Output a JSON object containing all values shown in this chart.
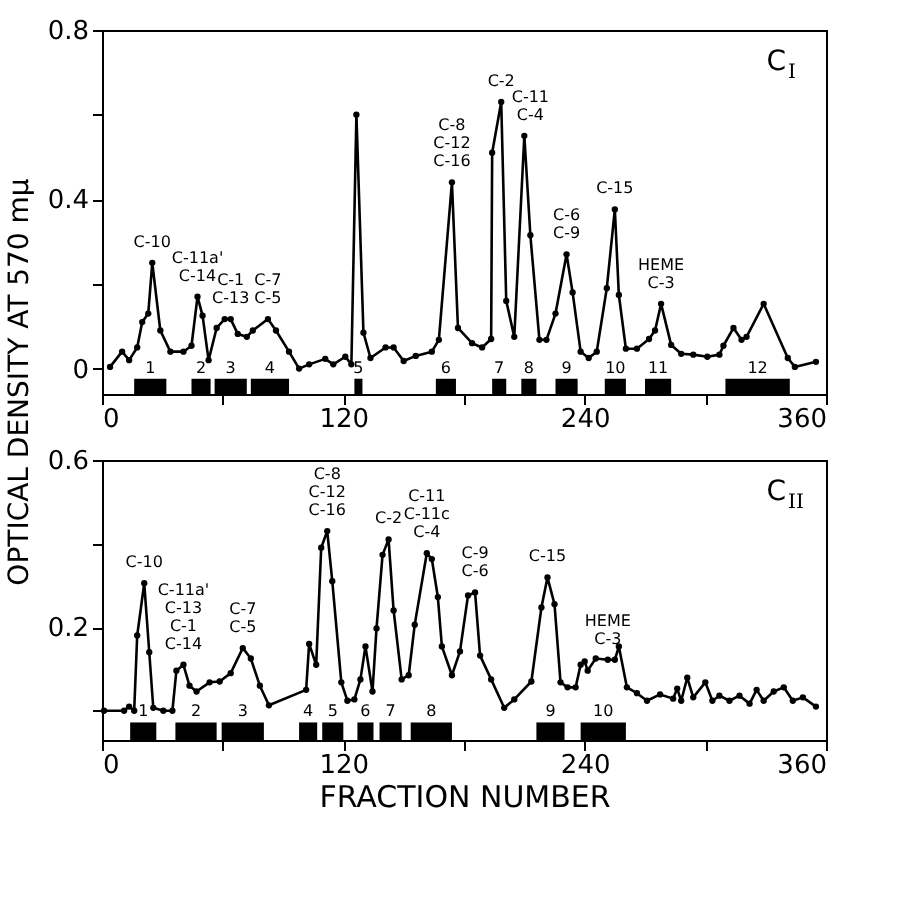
{
  "chart_data": [
    {
      "type": "line",
      "title": "C$_{I}$",
      "ylabel": "OPTICAL DENSITY AT 570 mμ",
      "marker": "circle",
      "grid": false,
      "xlim": [
        0,
        360
      ],
      "xticks": [
        0,
        {
          "value": 60,
          "label": null
        },
        120,
        {
          "value": 180,
          "label": null
        },
        240,
        {
          "value": 300,
          "label": null
        },
        360
      ],
      "ylim": [
        -0.06,
        0.8
      ],
      "yticks": [
        0,
        {
          "value": 0.2,
          "label": null
        },
        0.4,
        {
          "value": 0.6,
          "label": null
        },
        0.8
      ],
      "series": [
        {
          "color": "#000000",
          "x": [
            4,
            10,
            13.5,
            17.5,
            20,
            23,
            25,
            29,
            34,
            40.5,
            44.5,
            47.5,
            50,
            53,
            57,
            61,
            64,
            67.5,
            72,
            75,
            82.5,
            86.5,
            93,
            98,
            103,
            111,
            115,
            121,
            124,
            126.5,
            130,
            133.5,
            141,
            145,
            150,
            156,
            164,
            167.5,
            174,
            177,
            184,
            189,
            193.5,
            194,
            198.5,
            201,
            205,
            210,
            213,
            217.5,
            221,
            225.5,
            231,
            234,
            238,
            242,
            246,
            251,
            255,
            257,
            260.5,
            266,
            272,
            275,
            278,
            283,
            288,
            294,
            301,
            307,
            309,
            314,
            318,
            320.5,
            329,
            341,
            344.5,
            355
          ],
          "values": [
            0.004,
            0.04,
            0.02,
            0.05,
            0.11,
            0.13,
            0.25,
            0.09,
            0.04,
            0.04,
            0.054,
            0.17,
            0.125,
            0.02,
            0.096,
            0.117,
            0.117,
            0.082,
            0.075,
            0.09,
            0.117,
            0.09,
            0.04,
            0.0,
            0.01,
            0.023,
            0.01,
            0.028,
            0.01,
            0.6,
            0.085,
            0.025,
            0.05,
            0.05,
            0.018,
            0.03,
            0.04,
            0.068,
            0.44,
            0.096,
            0.06,
            0.05,
            0.07,
            0.51,
            0.63,
            0.16,
            0.075,
            0.55,
            0.315,
            0.068,
            0.068,
            0.13,
            0.27,
            0.18,
            0.04,
            0.025,
            0.04,
            0.19,
            0.376,
            0.174,
            0.047,
            0.047,
            0.07,
            0.09,
            0.153,
            0.056,
            0.035,
            0.033,
            0.028,
            0.033,
            0.054,
            0.096,
            0.068,
            0.075,
            0.153,
            0.025,
            0.004,
            0.016
          ]
        }
      ],
      "bands": [
        {
          "axis": "x",
          "from": 16,
          "to": 32,
          "label": "1"
        },
        {
          "axis": "x",
          "from": 44.5,
          "to": 54,
          "label": "2"
        },
        {
          "axis": "x",
          "from": 56,
          "to": 72,
          "label": "3"
        },
        {
          "axis": "x",
          "from": 74,
          "to": 93,
          "label": "4"
        },
        {
          "axis": "x",
          "from": 125.5,
          "to": 129.5,
          "label": "5"
        },
        {
          "axis": "x",
          "from": 166,
          "to": 176,
          "label": "6"
        },
        {
          "axis": "x",
          "from": 194,
          "to": 201,
          "label": "7"
        },
        {
          "axis": "x",
          "from": 208.5,
          "to": 216,
          "label": "8"
        },
        {
          "axis": "x",
          "from": 225.5,
          "to": 236.5,
          "label": "9"
        },
        {
          "axis": "x",
          "from": 250,
          "to": 260.5,
          "label": "10"
        },
        {
          "axis": "x",
          "from": 270,
          "to": 283,
          "label": "11"
        },
        {
          "axis": "x",
          "from": 310,
          "to": 342,
          "label": "12"
        }
      ],
      "annotations": [
        {
          "text": "C-10",
          "x": 25,
          "y": 0.25
        },
        {
          "text": "C-11a'\nC-14",
          "x": 47.5,
          "y": 0.17
        },
        {
          "text": "C-1\nC-13",
          "x": 64,
          "y": 0.117
        },
        {
          "text": "C-7\nC-5",
          "x": 82.5,
          "y": 0.117
        },
        {
          "text": "C-8\nC-12\nC-16",
          "x": 174,
          "y": 0.44
        },
        {
          "text": "C-2",
          "x": 198.5,
          "y": 0.63
        },
        {
          "text": "C-11\nC-4",
          "x": 213,
          "y": 0.55
        },
        {
          "text": "C-6\nC-9",
          "x": 231,
          "y": 0.27
        },
        {
          "text": "C-15",
          "x": 255,
          "y": 0.376
        },
        {
          "text": "HEME\nC-3",
          "x": 278,
          "y": 0.153
        }
      ]
    },
    {
      "type": "line",
      "title": "C$_{II}$",
      "xlabel": "FRACTION NUMBER",
      "marker": "circle",
      "grid": false,
      "xlim": [
        0,
        360
      ],
      "xticks": [
        0,
        {
          "value": 60,
          "label": null
        },
        120,
        {
          "value": 180,
          "label": null
        },
        240,
        {
          "value": 300,
          "label": null
        },
        360
      ],
      "ylim": [
        -0.07,
        0.6
      ],
      "yticks": [
        {
          "value": 0,
          "label": null
        },
        0.2,
        {
          "value": 0.4,
          "label": null
        },
        0.6
      ],
      "series": [
        {
          "color": "#000000",
          "x": [
            1,
            11,
            13.5,
            16,
            17.5,
            21,
            23.5,
            25.5,
            30.5,
            35,
            37,
            40.5,
            43.5,
            47,
            53.5,
            58.5,
            64,
            70,
            74,
            78.5,
            83,
            101.5,
            103,
            106.5,
            109,
            112,
            114.5,
            119,
            122,
            125.5,
            128.5,
            131,
            134.5,
            136.5,
            139.5,
            142.5,
            145,
            149,
            152.5,
            155.5,
            161.5,
            164,
            167,
            169,
            174,
            178,
            182,
            185.5,
            188,
            193.5,
            200,
            205,
            213.5,
            218.5,
            221.5,
            225,
            228,
            231.5,
            235.5,
            238,
            240,
            241.5,
            245.5,
            251.5,
            255,
            257,
            261,
            266,
            271,
            277.5,
            284,
            286,
            288,
            291,
            294,
            300,
            303.5,
            307,
            312,
            317,
            322,
            325.5,
            329,
            334,
            339,
            343.5,
            348.5,
            355
          ],
          "values": [
            0,
            0,
            0.01,
            0,
            0.18,
            0.305,
            0.14,
            0.007,
            0,
            0,
            0.096,
            0.11,
            0.06,
            0.046,
            0.068,
            0.07,
            0.09,
            0.15,
            0.125,
            0.06,
            0.013,
            0.05,
            0.16,
            0.11,
            0.39,
            0.43,
            0.31,
            0.068,
            0.024,
            0.027,
            0.075,
            0.154,
            0.046,
            0.197,
            0.373,
            0.41,
            0.24,
            0.075,
            0.085,
            0.206,
            0.377,
            0.363,
            0.272,
            0.154,
            0.085,
            0.142,
            0.276,
            0.283,
            0.132,
            0.075,
            0.007,
            0.027,
            0.07,
            0.247,
            0.319,
            0.255,
            0.068,
            0.056,
            0.056,
            0.11,
            0.118,
            0.096,
            0.125,
            0.122,
            0.122,
            0.154,
            0.056,
            0.042,
            0.024,
            0.039,
            0.029,
            0.053,
            0.024,
            0.079,
            0.032,
            0.068,
            0.024,
            0.036,
            0.024,
            0.036,
            0.017,
            0.05,
            0.024,
            0.046,
            0.056,
            0.024,
            0.032,
            0.01
          ]
        }
      ],
      "bands": [
        {
          "axis": "x",
          "from": 14,
          "to": 27,
          "label": "1"
        },
        {
          "axis": "x",
          "from": 36.5,
          "to": 57,
          "label": "2"
        },
        {
          "axis": "x",
          "from": 59.5,
          "to": 80.5,
          "label": "3"
        },
        {
          "axis": "x",
          "from": 98,
          "to": 107,
          "label": "4"
        },
        {
          "axis": "x",
          "from": 109.5,
          "to": 120,
          "label": "5"
        },
        {
          "axis": "x",
          "from": 127,
          "to": 135,
          "label": "6"
        },
        {
          "axis": "x",
          "from": 138,
          "to": 149,
          "label": "7"
        },
        {
          "axis": "x",
          "from": 153.5,
          "to": 174,
          "label": "8"
        },
        {
          "axis": "x",
          "from": 216,
          "to": 230,
          "label": "9"
        },
        {
          "axis": "x",
          "from": 238,
          "to": 260.5,
          "label": "10"
        }
      ],
      "annotations": [
        {
          "text": "C-10",
          "x": 21,
          "y": 0.305
        },
        {
          "text": "C-11a'\nC-13\nC-1\nC-14",
          "x": 40.5,
          "y": 0.11
        },
        {
          "text": "C-7\nC-5",
          "x": 70,
          "y": 0.15
        },
        {
          "text": "C-8\nC-12\nC-16",
          "x": 112,
          "y": 0.43
        },
        {
          "text": "C-2",
          "x": 142.5,
          "y": 0.41
        },
        {
          "text": "C-11\nC-11c\nC-4",
          "x": 161.5,
          "y": 0.377
        },
        {
          "text": "C-9\nC-6",
          "x": 185.5,
          "y": 0.283
        },
        {
          "text": "C-15",
          "x": 221.5,
          "y": 0.319
        },
        {
          "text": "HEME\nC-3",
          "x": 251.5,
          "y": 0.122
        }
      ]
    }
  ]
}
